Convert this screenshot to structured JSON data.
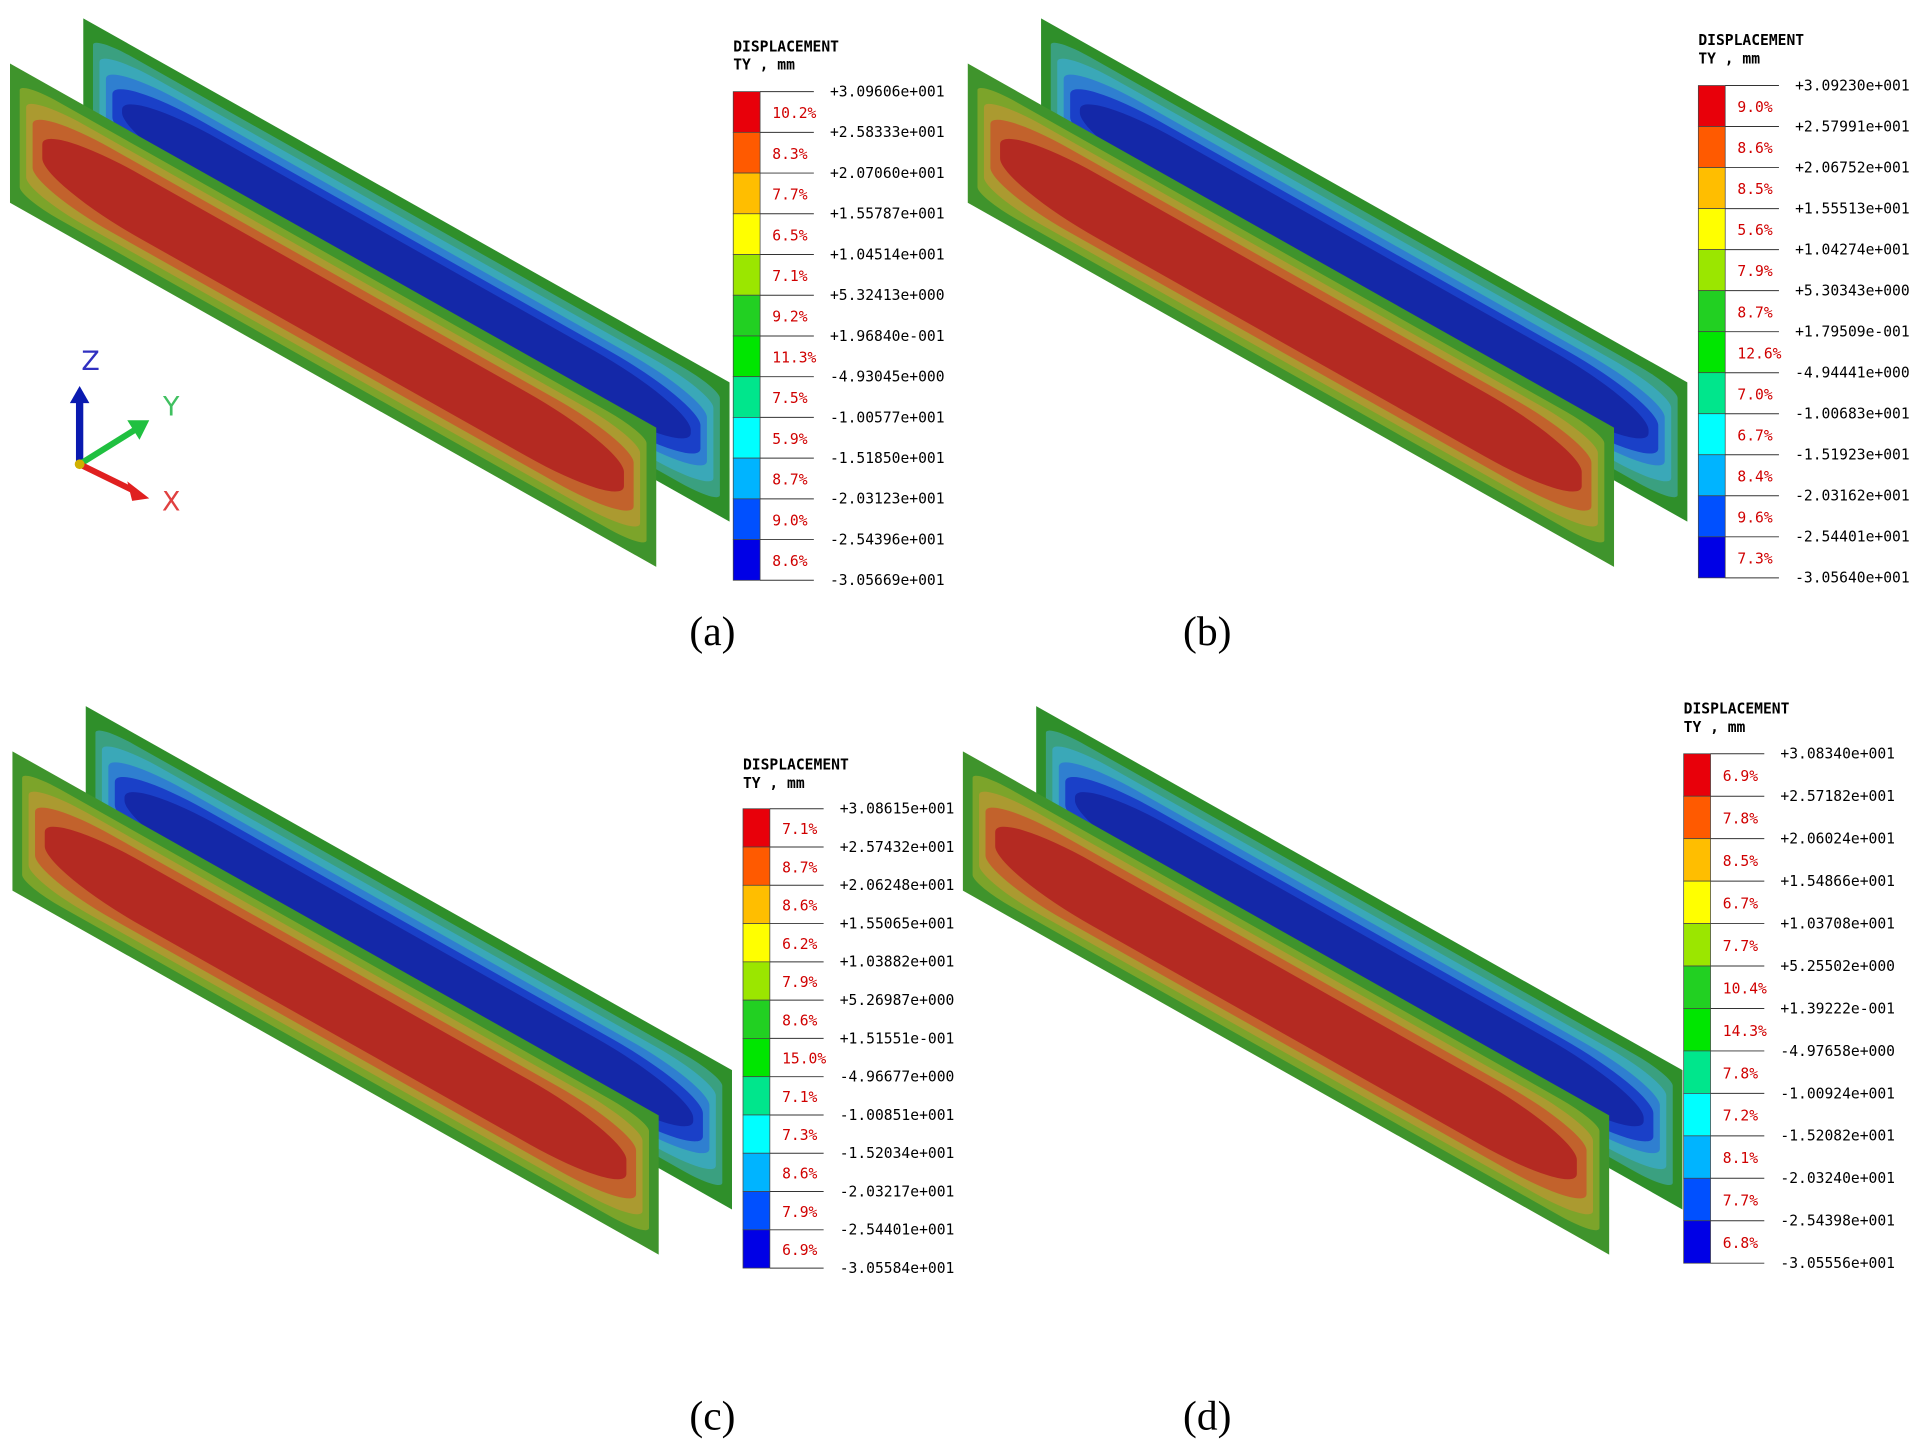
{
  "panels": [
    {
      "caption": "(a)",
      "legend": {
        "title": "DISPLACEMENT",
        "units": "TY , mm",
        "levels": [
          "+3.09606e+001",
          "+2.58333e+001",
          "+2.07060e+001",
          "+1.55787e+001",
          "+1.04514e+001",
          "+5.32413e+000",
          "+1.96840e-001",
          "-4.93045e+000",
          "-1.00577e+001",
          "-1.51850e+001",
          "-2.03123e+001",
          "-2.54396e+001",
          "-3.05669e+001"
        ],
        "percentages": [
          "10.2%",
          "8.3%",
          "7.7%",
          "6.5%",
          "7.1%",
          "9.2%",
          "11.3%",
          "7.5%",
          "5.9%",
          "8.7%",
          "9.0%",
          "8.6%"
        ]
      }
    },
    {
      "caption": "(b)",
      "legend": {
        "title": "DISPLACEMENT",
        "units": "TY , mm",
        "levels": [
          "+3.09230e+001",
          "+2.57991e+001",
          "+2.06752e+001",
          "+1.55513e+001",
          "+1.04274e+001",
          "+5.30343e+000",
          "+1.79509e-001",
          "-4.94441e+000",
          "-1.00683e+001",
          "-1.51923e+001",
          "-2.03162e+001",
          "-2.54401e+001",
          "-3.05640e+001"
        ],
        "percentages": [
          "9.0%",
          "8.6%",
          "8.5%",
          "5.6%",
          "7.9%",
          "8.7%",
          "12.6%",
          "7.0%",
          "6.7%",
          "8.4%",
          "9.6%",
          "7.3%"
        ]
      }
    },
    {
      "caption": "(c)",
      "legend": {
        "title": "DISPLACEMENT",
        "units": "TY , mm",
        "levels": [
          "+3.08615e+001",
          "+2.57432e+001",
          "+2.06248e+001",
          "+1.55065e+001",
          "+1.03882e+001",
          "+5.26987e+000",
          "+1.51551e-001",
          "-4.96677e+000",
          "-1.00851e+001",
          "-1.52034e+001",
          "-2.03217e+001",
          "-2.54401e+001",
          "-3.05584e+001"
        ],
        "percentages": [
          "7.1%",
          "8.7%",
          "8.6%",
          "6.2%",
          "7.9%",
          "8.6%",
          "15.0%",
          "7.1%",
          "7.3%",
          "8.6%",
          "7.9%",
          "6.9%"
        ]
      }
    },
    {
      "caption": "(d)",
      "legend": {
        "title": "DISPLACEMENT",
        "units": "TY , mm",
        "levels": [
          "+3.08340e+001",
          "+2.57182e+001",
          "+2.06024e+001",
          "+1.54866e+001",
          "+1.03708e+001",
          "+5.25502e+000",
          "+1.39222e-001",
          "-4.97658e+000",
          "-1.00924e+001",
          "-1.52082e+001",
          "-2.03240e+001",
          "-2.54398e+001",
          "-3.05556e+001"
        ],
        "percentages": [
          "6.9%",
          "7.8%",
          "8.5%",
          "6.7%",
          "7.7%",
          "10.4%",
          "14.3%",
          "7.8%",
          "7.2%",
          "8.1%",
          "7.7%",
          "6.8%"
        ]
      }
    }
  ],
  "axis_labels": [
    "Z",
    "Y",
    "X"
  ]
}
